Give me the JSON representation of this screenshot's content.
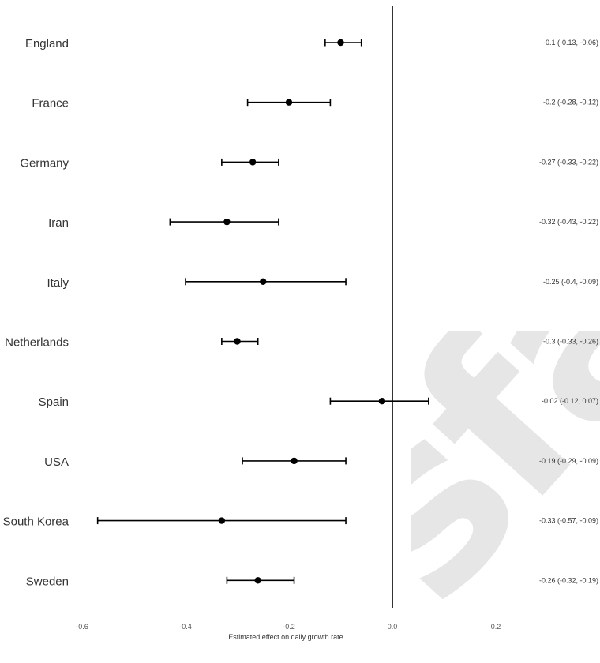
{
  "watermark_text": "sfa",
  "chart_data": {
    "type": "forest",
    "xlabel": "Estimated effect on daily growth rate",
    "xlim": [
      -0.6,
      0.2
    ],
    "xticks": [
      -0.6,
      -0.4,
      -0.2,
      0.0,
      0.2
    ],
    "xtick_labels": [
      "-0.6",
      "-0.4",
      "-0.2",
      "0.0",
      "0.2"
    ],
    "reference_line": 0.0,
    "grid": false,
    "rows": [
      {
        "label": "England",
        "estimate": -0.1,
        "lower": -0.13,
        "upper": -0.06,
        "annotation": "-0.1 (-0.13, -0.06)"
      },
      {
        "label": "France",
        "estimate": -0.2,
        "lower": -0.28,
        "upper": -0.12,
        "annotation": "-0.2 (-0.28, -0.12)"
      },
      {
        "label": "Germany",
        "estimate": -0.27,
        "lower": -0.33,
        "upper": -0.22,
        "annotation": "-0.27 (-0.33, -0.22)"
      },
      {
        "label": "Iran",
        "estimate": -0.32,
        "lower": -0.43,
        "upper": -0.22,
        "annotation": "-0.32 (-0.43, -0.22)"
      },
      {
        "label": "Italy",
        "estimate": -0.25,
        "lower": -0.4,
        "upper": -0.09,
        "annotation": "-0.25 (-0.4, -0.09)"
      },
      {
        "label": "Netherlands",
        "estimate": -0.3,
        "lower": -0.33,
        "upper": -0.26,
        "annotation": "-0.3 (-0.33, -0.26)"
      },
      {
        "label": "Spain",
        "estimate": -0.02,
        "lower": -0.12,
        "upper": 0.07,
        "annotation": "-0.02 (-0.12, 0.07)"
      },
      {
        "label": "USA",
        "estimate": -0.19,
        "lower": -0.29,
        "upper": -0.09,
        "annotation": "-0.19 (-0.29, -0.09)"
      },
      {
        "label": "South Korea",
        "estimate": -0.33,
        "lower": -0.57,
        "upper": -0.09,
        "annotation": "-0.33 (-0.57, -0.09)"
      },
      {
        "label": "Sweden",
        "estimate": -0.26,
        "lower": -0.32,
        "upper": -0.19,
        "annotation": "-0.26 (-0.32, -0.19)"
      }
    ]
  }
}
